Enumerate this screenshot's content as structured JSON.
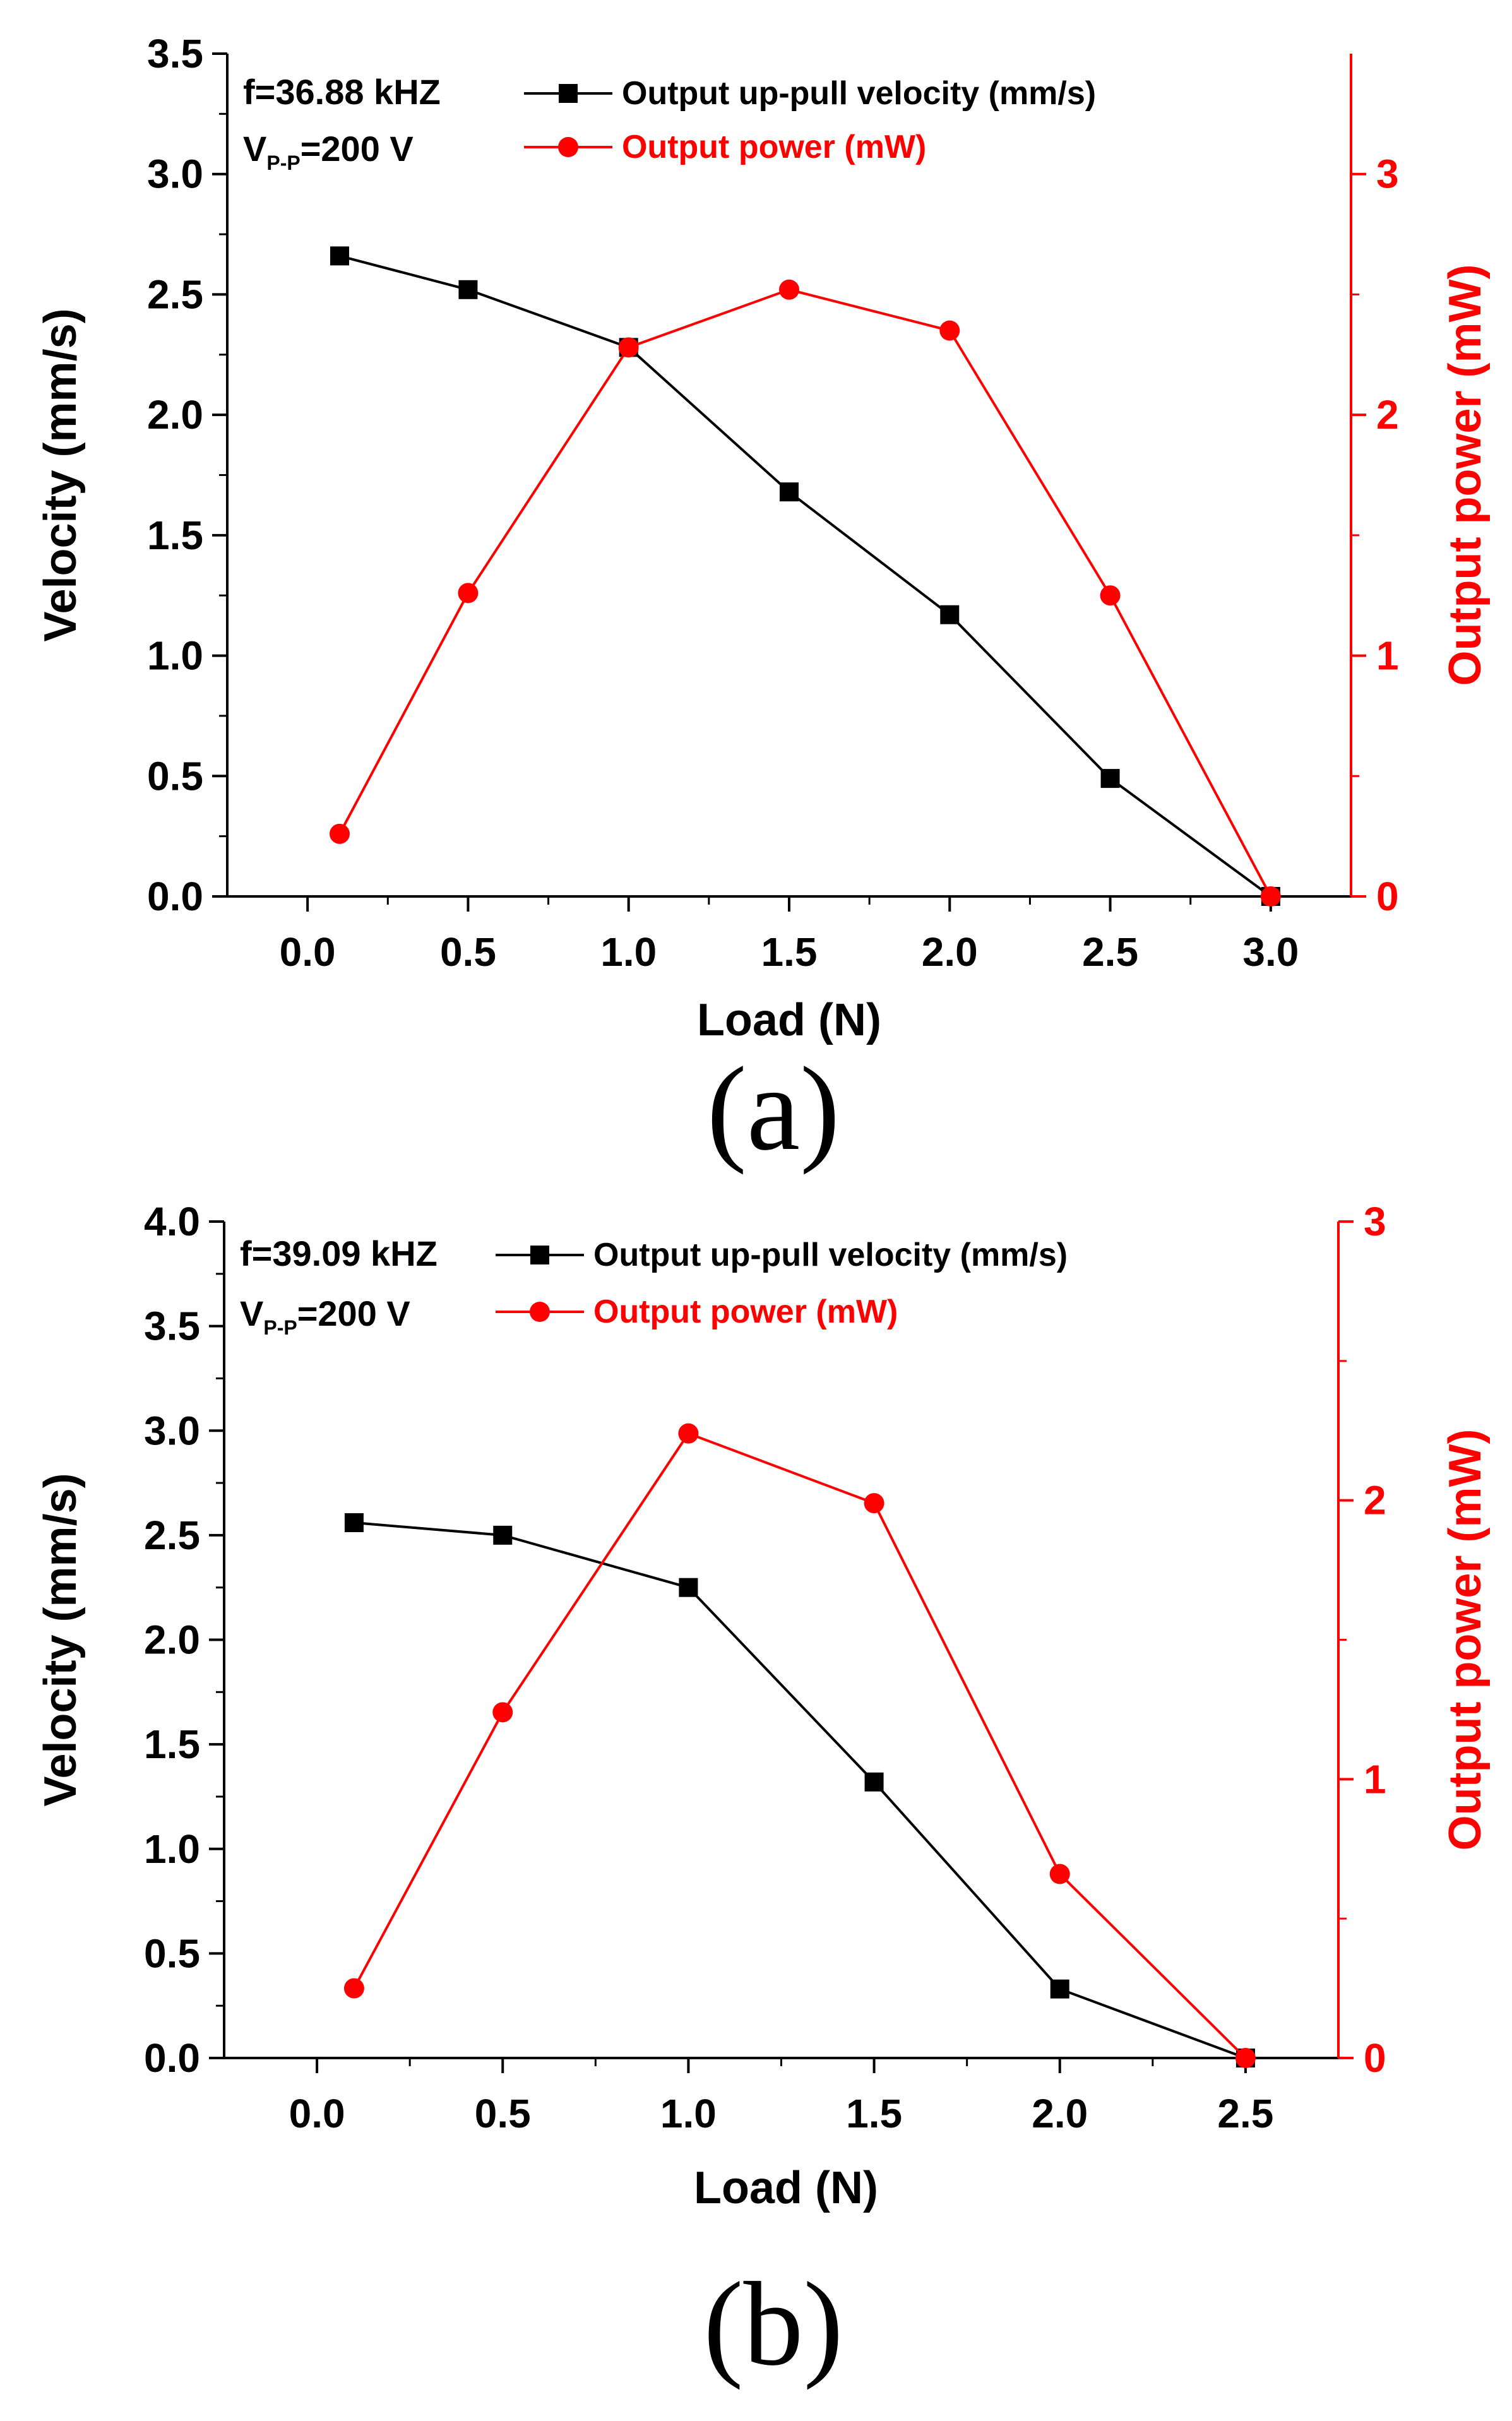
{
  "chart_data": [
    {
      "type": "line",
      "panel_label": "(a)",
      "xlabel": "Load (N)",
      "ylabel": "Velocity (mm/s)",
      "y2label": "Output power (mW)",
      "xlim": [
        -0.25,
        3.25
      ],
      "ylim": [
        0,
        3.5
      ],
      "y2lim": [
        0,
        3.5
      ],
      "xticks": [
        0.0,
        0.5,
        1.0,
        1.5,
        2.0,
        2.5,
        3.0
      ],
      "xtick_labels": [
        "0.0",
        "0.5",
        "1.0",
        "1.5",
        "2.0",
        "2.5",
        "3.0"
      ],
      "yticks": [
        0.0,
        0.5,
        1.0,
        1.5,
        2.0,
        2.5,
        3.0,
        3.5
      ],
      "ytick_labels": [
        "0.0",
        "0.5",
        "1.0",
        "1.5",
        "2.0",
        "2.5",
        "3.0",
        "3.5"
      ],
      "y2ticks": [
        0,
        1,
        2,
        3
      ],
      "y2tick_labels": [
        "0",
        "1",
        "2",
        "3"
      ],
      "annotation": {
        "freq": "f=36.88 kHZ",
        "v_main": "V",
        "v_sub": "P-P",
        "v_rest": "=200 V"
      },
      "series": [
        {
          "name": "Output up-pull velocity (mm/s)",
          "axis": "left",
          "color": "#000000",
          "marker": "square",
          "x": [
            0.1,
            0.5,
            1.0,
            1.5,
            2.0,
            2.5,
            3.0
          ],
          "values": [
            2.66,
            2.52,
            2.28,
            1.68,
            1.17,
            0.49,
            0.0
          ]
        },
        {
          "name": "Output power (mW)",
          "axis": "right",
          "color": "#ff0000",
          "marker": "circle",
          "x": [
            0.1,
            0.5,
            1.0,
            1.5,
            2.0,
            2.5,
            3.0
          ],
          "values": [
            0.26,
            1.26,
            2.28,
            2.52,
            2.35,
            1.25,
            0.0
          ]
        }
      ]
    },
    {
      "type": "line",
      "panel_label": "(b)",
      "xlabel": "Load (N)",
      "ylabel": "Velocity (mm/s)",
      "y2label": "Output power (mW)",
      "xlim": [
        -0.25,
        2.75
      ],
      "ylim": [
        0,
        4.0
      ],
      "y2lim": [
        0,
        3.0
      ],
      "xticks": [
        0.0,
        0.5,
        1.0,
        1.5,
        2.0,
        2.5
      ],
      "xtick_labels": [
        "0.0",
        "0.5",
        "1.0",
        "1.5",
        "2.0",
        "2.5"
      ],
      "yticks": [
        0.0,
        0.5,
        1.0,
        1.5,
        2.0,
        2.5,
        3.0,
        3.5,
        4.0
      ],
      "ytick_labels": [
        "0.0",
        "0.5",
        "1.0",
        "1.5",
        "2.0",
        "2.5",
        "3.0",
        "3.5",
        "4.0"
      ],
      "y2ticks": [
        0,
        1,
        2,
        3
      ],
      "y2tick_labels": [
        "0",
        "1",
        "2",
        "3"
      ],
      "annotation": {
        "freq": "f=39.09 kHZ",
        "v_main": "V",
        "v_sub": "P-P",
        "v_rest": "=200 V"
      },
      "series": [
        {
          "name": "Output up-pull velocity (mm/s)",
          "axis": "left",
          "color": "#000000",
          "marker": "square",
          "x": [
            0.1,
            0.5,
            1.0,
            1.5,
            2.0,
            2.5
          ],
          "values": [
            2.56,
            2.5,
            2.25,
            1.32,
            0.33,
            0.0
          ]
        },
        {
          "name": "Output power (mW)",
          "axis": "right",
          "color": "#ff0000",
          "marker": "circle",
          "x": [
            0.1,
            0.5,
            1.0,
            1.5,
            2.0,
            2.5
          ],
          "values": [
            0.25,
            1.24,
            2.24,
            1.99,
            0.66,
            0.0
          ]
        }
      ]
    }
  ]
}
